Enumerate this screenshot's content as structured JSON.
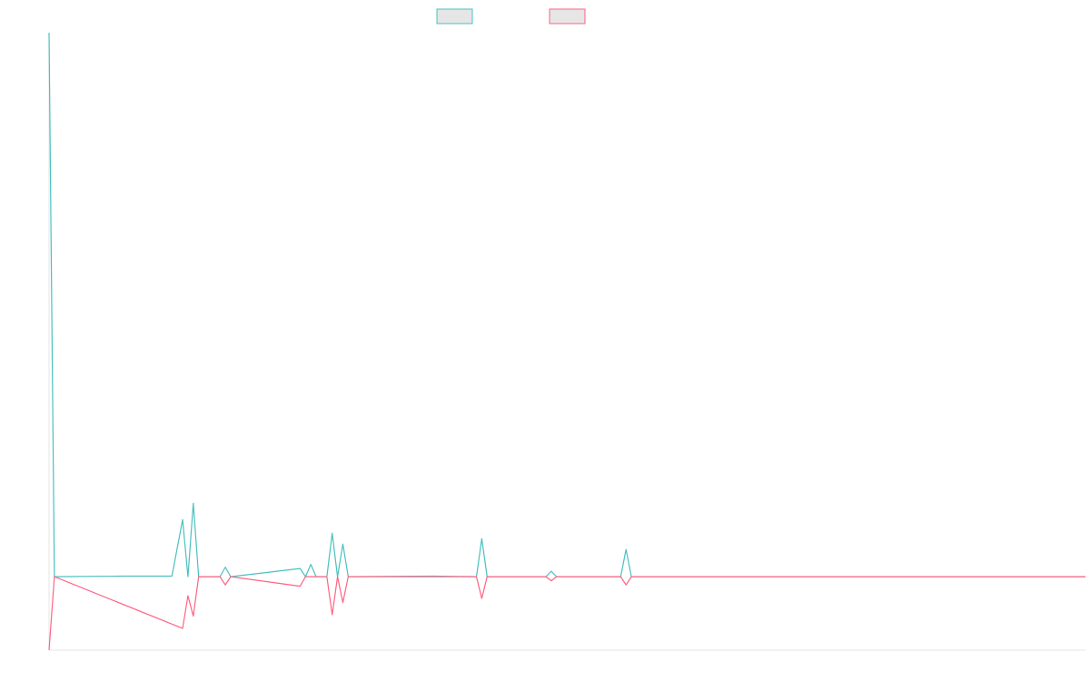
{
  "chart_data": {
    "type": "line",
    "title": "",
    "xlabel": "",
    "ylabel": "",
    "x_count": 195,
    "ylim": [
      -2.7,
      20
    ],
    "grid": false,
    "legend": {
      "placement": "top-center",
      "shown_labels": false
    },
    "series": [
      {
        "name": "",
        "color": "#4bc0c0",
        "points": [
          [
            0,
            20
          ],
          [
            1,
            0
          ],
          [
            14,
            0.02
          ],
          [
            23,
            0.02
          ],
          [
            25,
            2.1
          ],
          [
            26,
            0
          ],
          [
            27,
            2.7
          ],
          [
            28,
            0
          ],
          [
            29,
            0
          ],
          [
            31,
            0
          ],
          [
            32,
            0
          ],
          [
            33,
            0.35
          ],
          [
            34,
            0
          ],
          [
            47,
            0.3
          ],
          [
            48,
            0
          ],
          [
            49,
            0.45
          ],
          [
            50,
            0
          ],
          [
            52,
            0
          ],
          [
            53,
            1.6
          ],
          [
            54,
            0
          ],
          [
            55,
            1.2
          ],
          [
            56,
            0
          ],
          [
            72,
            0.02
          ],
          [
            80,
            0
          ],
          [
            81,
            1.4
          ],
          [
            82,
            0
          ],
          [
            93,
            0
          ],
          [
            94,
            0.2
          ],
          [
            95,
            0
          ],
          [
            107,
            0
          ],
          [
            108,
            1.0
          ],
          [
            109,
            0
          ],
          [
            194,
            0
          ]
        ]
      },
      {
        "name": "",
        "color": "#ff6384",
        "points": [
          [
            0,
            -2.7
          ],
          [
            1,
            0
          ],
          [
            25,
            -1.9
          ],
          [
            26,
            -0.7
          ],
          [
            27,
            -1.45
          ],
          [
            28,
            0
          ],
          [
            31,
            0
          ],
          [
            32,
            0
          ],
          [
            33,
            -0.3
          ],
          [
            34,
            0
          ],
          [
            47,
            -0.35
          ],
          [
            48,
            0
          ],
          [
            49,
            0
          ],
          [
            52,
            0
          ],
          [
            53,
            -1.4
          ],
          [
            54,
            0
          ],
          [
            55,
            -0.95
          ],
          [
            56,
            0
          ],
          [
            80,
            0
          ],
          [
            81,
            -0.8
          ],
          [
            82,
            0
          ],
          [
            93,
            0
          ],
          [
            94,
            -0.15
          ],
          [
            95,
            0
          ],
          [
            107,
            0
          ],
          [
            108,
            -0.3
          ],
          [
            109,
            0
          ],
          [
            194,
            0
          ]
        ]
      }
    ]
  }
}
